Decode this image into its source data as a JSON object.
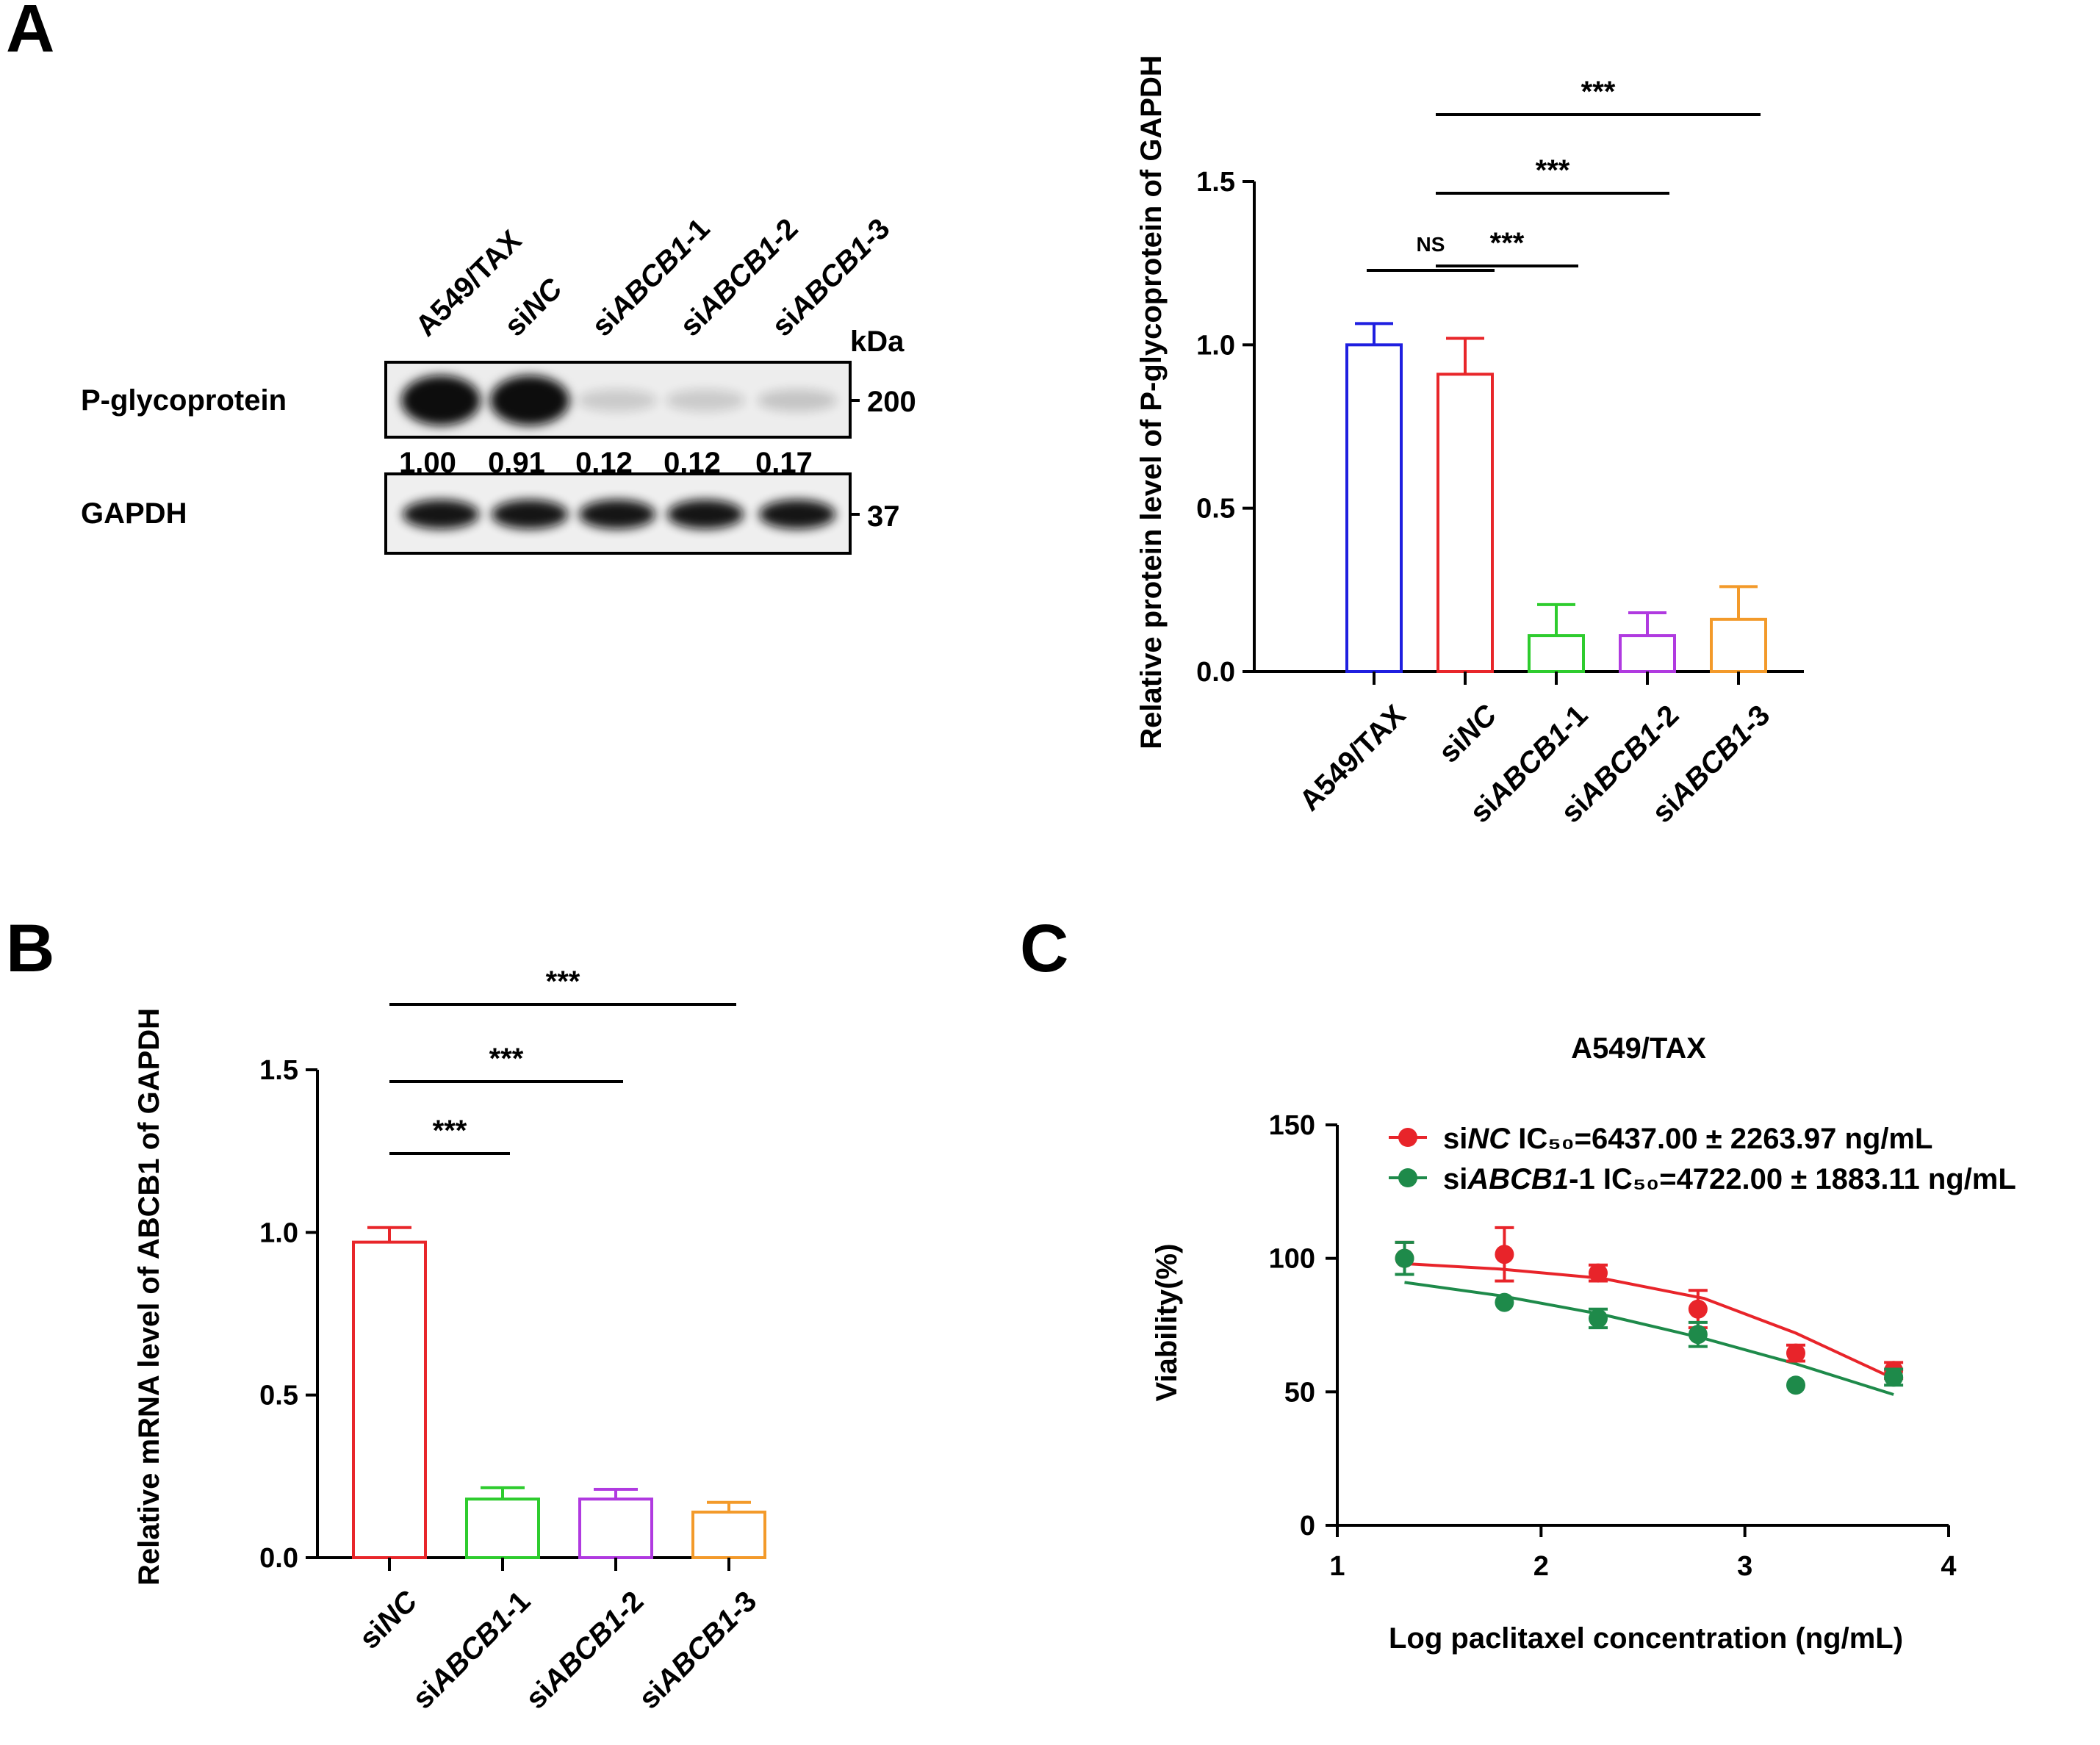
{
  "panels": {
    "a": "A",
    "b": "B",
    "c": "C"
  },
  "western_blot": {
    "lanes": [
      {
        "pre": "A549/TAX",
        "it": "",
        "post": ""
      },
      {
        "pre": "si",
        "it": "NC",
        "post": ""
      },
      {
        "pre": "si",
        "it": "ABCB1",
        "post": "-1"
      },
      {
        "pre": "si",
        "it": "ABCB1",
        "post": "-2"
      },
      {
        "pre": "si",
        "it": "ABCB1",
        "post": "-3"
      }
    ],
    "kda_label": "kDa",
    "proteins": [
      {
        "name": "P-glycoprotein",
        "kda": "200"
      },
      {
        "name": "GAPDH",
        "kda": "37"
      }
    ],
    "quant": [
      "1.00",
      "0.91",
      "0.12",
      "0.12",
      "0.17"
    ],
    "pgp_intensity": [
      1.0,
      0.91,
      0.12,
      0.12,
      0.17
    ]
  },
  "colors": {
    "blue": "#1f1fe0",
    "red": "#e8262a",
    "green": "#2ecc2e",
    "purple": "#b03ae0",
    "orange": "#f39a2a",
    "c_red": "#e8242a",
    "c_green": "#1e8a4a"
  },
  "chart_data": [
    {
      "id": "A-bar",
      "type": "bar",
      "ylabel": "Relative protein level of P-glycoprotein of GAPDH",
      "ylim": [
        0,
        1.5
      ],
      "yticks": [
        "0.0",
        "0.5",
        "1.0",
        "1.5"
      ],
      "categories": [
        {
          "pre": "A549/TAX",
          "it": "",
          "post": ""
        },
        {
          "pre": "si",
          "it": "NC",
          "post": ""
        },
        {
          "pre": "si",
          "it": "ABCB1",
          "post": "-1"
        },
        {
          "pre": "si",
          "it": "ABCB1",
          "post": "-2"
        },
        {
          "pre": "si",
          "it": "ABCB1",
          "post": "-3"
        }
      ],
      "values": [
        1.0,
        0.91,
        0.11,
        0.11,
        0.16
      ],
      "errors": [
        0.065,
        0.11,
        0.095,
        0.07,
        0.1
      ],
      "colors": [
        "#1f1fe0",
        "#e8262a",
        "#2ecc2e",
        "#b03ae0",
        "#f39a2a"
      ],
      "significance": [
        {
          "from": 0,
          "to": 1,
          "label": "NS"
        },
        {
          "from": 1,
          "to": 2,
          "label": "***"
        },
        {
          "from": 1,
          "to": 3,
          "label": "***"
        },
        {
          "from": 1,
          "to": 4,
          "label": "***"
        }
      ]
    },
    {
      "id": "B-bar",
      "type": "bar",
      "ylabel": "Relative mRNA level of ABCB1 of GAPDH",
      "ylim": [
        0,
        1.5
      ],
      "yticks": [
        "0.0",
        "0.5",
        "1.0",
        "1.5"
      ],
      "categories": [
        {
          "pre": "si",
          "it": "NC",
          "post": ""
        },
        {
          "pre": "si",
          "it": "ABCB1",
          "post": "-1"
        },
        {
          "pre": "si",
          "it": "ABCB1",
          "post": "-2"
        },
        {
          "pre": "si",
          "it": "ABCB1",
          "post": "-3"
        }
      ],
      "values": [
        0.97,
        0.18,
        0.18,
        0.14
      ],
      "errors": [
        0.045,
        0.035,
        0.03,
        0.03
      ],
      "colors": [
        "#e8262a",
        "#2ecc2e",
        "#b03ae0",
        "#f39a2a"
      ],
      "significance": [
        {
          "from": 0,
          "to": 1,
          "label": "***"
        },
        {
          "from": 0,
          "to": 2,
          "label": "***"
        },
        {
          "from": 0,
          "to": 3,
          "label": "***"
        }
      ]
    },
    {
      "id": "C-dose-response",
      "type": "scatter",
      "title": "A549/TAX",
      "xlabel": "Log paclitaxel concentration (ng/mL)",
      "ylabel": "Viability(%)",
      "xlim": [
        1,
        4
      ],
      "ylim": [
        0,
        150
      ],
      "xticks": [
        "1",
        "2",
        "3",
        "4"
      ],
      "yticks": [
        "0",
        "50",
        "100",
        "150"
      ],
      "series": [
        {
          "name": {
            "pre": "si",
            "it": "NC",
            "post": " IC₅₀=6437.00 ± 2263.97 ng/mL"
          },
          "color": "#e8242a",
          "x": [
            1.33,
            1.82,
            2.28,
            2.77,
            3.25,
            3.73
          ],
          "y": [
            100,
            101.5,
            94.5,
            81,
            64.5,
            58
          ],
          "err": [
            6,
            10,
            3,
            7,
            3,
            3
          ],
          "fit": [
            [
              1.33,
              98
            ],
            [
              1.8,
              96
            ],
            [
              2.3,
              92.5
            ],
            [
              2.8,
              85
            ],
            [
              3.25,
              72
            ],
            [
              3.73,
              55
            ]
          ]
        },
        {
          "name": {
            "pre": "si",
            "it": "ABCB1",
            "post": "-1 IC₅₀=4722.00 ± 1883.11 ng/mL"
          },
          "color": "#1e8a4a",
          "x": [
            1.33,
            1.82,
            2.28,
            2.77,
            3.25,
            3.73
          ],
          "y": [
            100,
            83.5,
            77.5,
            71.5,
            52.5,
            55.5
          ],
          "err": [
            6,
            0,
            3.5,
            4.5,
            0,
            3
          ],
          "fit": [
            [
              1.33,
              91
            ],
            [
              1.8,
              86
            ],
            [
              2.3,
              79
            ],
            [
              2.8,
              70
            ],
            [
              3.25,
              60.5
            ],
            [
              3.73,
              49
            ]
          ]
        }
      ]
    }
  ]
}
